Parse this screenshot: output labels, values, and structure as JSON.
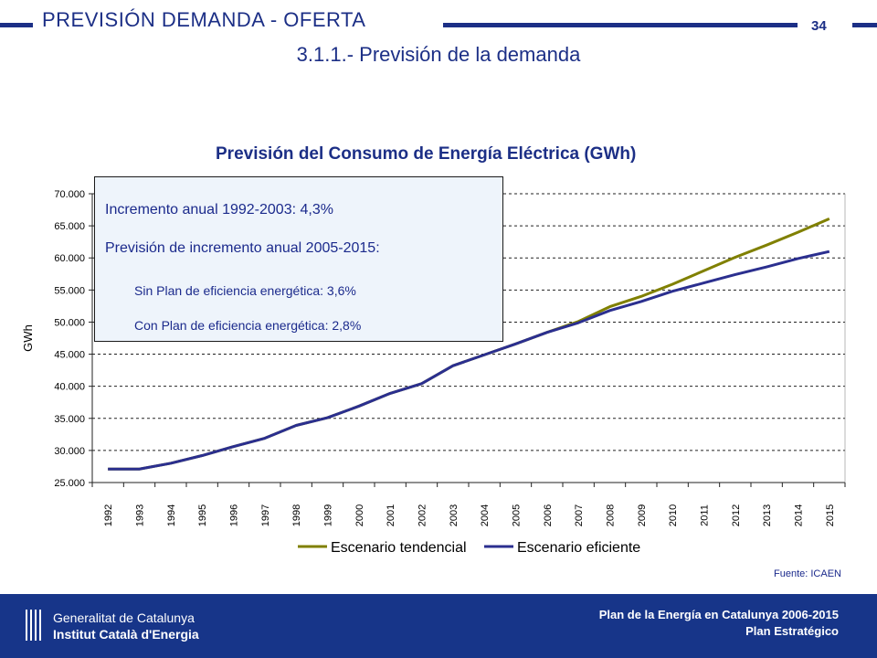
{
  "header": {
    "title": "PREVISIÓN DEMANDA - OFERTA",
    "page_number": "34",
    "subtitle": "3.1.1.- Previsión de la demanda"
  },
  "infobox": {
    "line1": "Incremento anual 1992-2003: 4,3%",
    "line2": "Previsión de incremento anual 2005-2015:",
    "line3": "Sin Plan de eficiencia energética: 3,6%",
    "line4": "Con Plan de eficiencia energética: 2,8%"
  },
  "source": "Fuente: ICAEN",
  "footer": {
    "org_line1": "Generalitat de Catalunya",
    "org_line2": "Institut Català d'Energia",
    "plan_line1": "Plan de la Energía en Catalunya 2006-2015",
    "plan_line2": "Plan Estratégico"
  },
  "colors": {
    "brand_blue": "#1c2f86",
    "tendencial": "#808000",
    "eficiente": "#2b2f8f"
  },
  "chart_data": {
    "type": "line",
    "title": "Previsión del Consumo de Energía Eléctrica (GWh)",
    "ylabel": "GWh",
    "xlabel": "",
    "ylim": [
      25000,
      70000
    ],
    "y_ticks": [
      25000,
      30000,
      35000,
      40000,
      45000,
      50000,
      55000,
      60000,
      65000,
      70000
    ],
    "y_tick_labels": [
      "25.000",
      "30.000",
      "35.000",
      "40.000",
      "45.000",
      "50.000",
      "55.000",
      "60.000",
      "65.000",
      "70.000"
    ],
    "grid": "horizontal dashed",
    "legend_position": "bottom",
    "categories": [
      "1992",
      "1993",
      "1994",
      "1995",
      "1996",
      "1997",
      "1998",
      "1999",
      "2000",
      "2001",
      "2002",
      "2003",
      "2004",
      "2005",
      "2006",
      "2007",
      "2008",
      "2009",
      "2010",
      "2011",
      "2012",
      "2013",
      "2014",
      "2015"
    ],
    "series": [
      {
        "name": "Escenario tendencial",
        "color": "#808000",
        "values": [
          27100,
          27100,
          28000,
          29200,
          30600,
          31900,
          33900,
          35100,
          36900,
          38900,
          40400,
          43200,
          44900,
          46600,
          48400,
          50100,
          52400,
          54000,
          55900,
          58000,
          60100,
          62000,
          64000,
          66100
        ]
      },
      {
        "name": "Escenario eficiente",
        "color": "#2b2f8f",
        "values": [
          27100,
          27100,
          28000,
          29200,
          30600,
          31900,
          33900,
          35100,
          36900,
          38900,
          40400,
          43200,
          44900,
          46600,
          48400,
          49900,
          51800,
          53200,
          54800,
          56100,
          57400,
          58600,
          59900,
          61000
        ]
      }
    ]
  }
}
